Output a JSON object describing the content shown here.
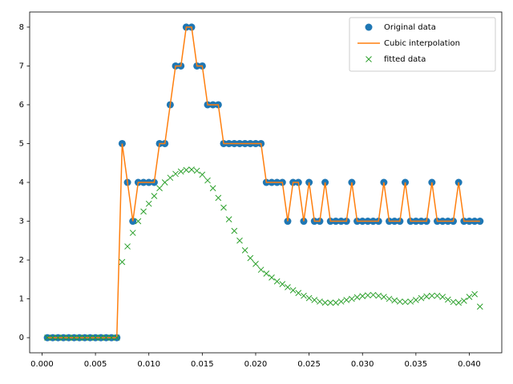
{
  "chart_data": {
    "type": "line",
    "x": [
      0.0005,
      0.001,
      0.0015,
      0.002,
      0.0025,
      0.003,
      0.0035,
      0.004,
      0.0045,
      0.005,
      0.0055,
      0.006,
      0.0065,
      0.007,
      0.0075,
      0.008,
      0.0085,
      0.009,
      0.0095,
      0.01,
      0.0105,
      0.011,
      0.0115,
      0.012,
      0.0125,
      0.013,
      0.0135,
      0.014,
      0.0145,
      0.015,
      0.0155,
      0.016,
      0.0165,
      0.017,
      0.0175,
      0.018,
      0.0185,
      0.019,
      0.0195,
      0.02,
      0.0205,
      0.021,
      0.0215,
      0.022,
      0.0225,
      0.023,
      0.0235,
      0.024,
      0.0245,
      0.025,
      0.0255,
      0.026,
      0.0265,
      0.027,
      0.0275,
      0.028,
      0.0285,
      0.029,
      0.0295,
      0.03,
      0.0305,
      0.031,
      0.0315,
      0.032,
      0.0325,
      0.033,
      0.0335,
      0.034,
      0.0345,
      0.035,
      0.0355,
      0.036,
      0.0365,
      0.037,
      0.0375,
      0.038,
      0.0385,
      0.039,
      0.0395,
      0.04,
      0.0405,
      0.041
    ],
    "series": [
      {
        "name": "Original data",
        "color": "#1f77b4",
        "style": "marker-circle",
        "values": [
          0,
          0,
          0,
          0,
          0,
          0,
          0,
          0,
          0,
          0,
          0,
          0,
          0,
          0,
          5,
          4,
          3,
          4,
          4,
          4,
          4,
          5,
          5,
          6,
          7,
          7,
          8,
          8,
          7,
          7,
          6,
          6,
          6,
          5,
          5,
          5,
          5,
          5,
          5,
          5,
          5,
          4,
          4,
          4,
          4,
          3,
          4,
          4,
          3,
          4,
          3,
          3,
          4,
          3,
          3,
          3,
          3,
          4,
          3,
          3,
          3,
          3,
          3,
          4,
          3,
          3,
          3,
          4,
          3,
          3,
          3,
          3,
          4,
          3,
          3,
          3,
          3,
          4,
          3,
          3,
          3,
          3
        ]
      },
      {
        "name": "Cubic interpolation",
        "color": "#ff7f0e",
        "style": "line",
        "values": [
          0,
          0,
          0,
          0,
          0,
          0,
          0,
          0,
          0,
          0,
          0,
          0,
          0,
          0,
          5,
          4,
          3,
          4,
          4,
          4,
          4,
          5,
          5,
          6,
          7,
          7,
          8,
          8,
          7,
          7,
          6,
          6,
          6,
          5,
          5,
          5,
          5,
          5,
          5,
          5,
          5,
          4,
          4,
          4,
          4,
          3,
          4,
          4,
          3,
          4,
          3,
          3,
          4,
          3,
          3,
          3,
          3,
          4,
          3,
          3,
          3,
          3,
          3,
          4,
          3,
          3,
          3,
          4,
          3,
          3,
          3,
          3,
          4,
          3,
          3,
          3,
          3,
          4,
          3,
          3,
          3,
          3
        ]
      },
      {
        "name": "fitted data",
        "color": "#2ca02c",
        "style": "marker-x",
        "values": [
          0,
          0,
          0,
          0,
          0,
          0,
          0,
          0,
          0,
          0,
          0,
          0,
          0,
          0,
          1.95,
          2.35,
          2.7,
          3.0,
          3.25,
          3.45,
          3.65,
          3.85,
          4.0,
          4.12,
          4.22,
          4.28,
          4.32,
          4.33,
          4.3,
          4.2,
          4.05,
          3.85,
          3.6,
          3.35,
          3.05,
          2.75,
          2.5,
          2.25,
          2.05,
          1.9,
          1.75,
          1.65,
          1.55,
          1.45,
          1.38,
          1.3,
          1.22,
          1.15,
          1.08,
          1.02,
          0.97,
          0.93,
          0.9,
          0.9,
          0.9,
          0.93,
          0.97,
          1.0,
          1.04,
          1.07,
          1.09,
          1.1,
          1.08,
          1.05,
          1.0,
          0.96,
          0.93,
          0.92,
          0.93,
          0.97,
          1.02,
          1.06,
          1.08,
          1.08,
          1.05,
          0.98,
          0.92,
          0.9,
          0.95,
          1.05,
          1.12,
          0.8
        ]
      }
    ],
    "xlim": [
      -0.00116,
      0.04304
    ],
    "ylim": [
      -0.39,
      8.39
    ],
    "xticks": [
      {
        "value": 0,
        "label": "0.000"
      },
      {
        "value": 0.005,
        "label": "0.005"
      },
      {
        "value": 0.01,
        "label": "0.010"
      },
      {
        "value": 0.015,
        "label": "0.015"
      },
      {
        "value": 0.02,
        "label": "0.020"
      },
      {
        "value": 0.025,
        "label": "0.025"
      },
      {
        "value": 0.03,
        "label": "0.030"
      },
      {
        "value": 0.035,
        "label": "0.035"
      },
      {
        "value": 0.04,
        "label": "0.040"
      }
    ],
    "yticks": [
      0,
      1,
      2,
      3,
      4,
      5,
      6,
      7,
      8
    ],
    "legend": "upper right"
  }
}
